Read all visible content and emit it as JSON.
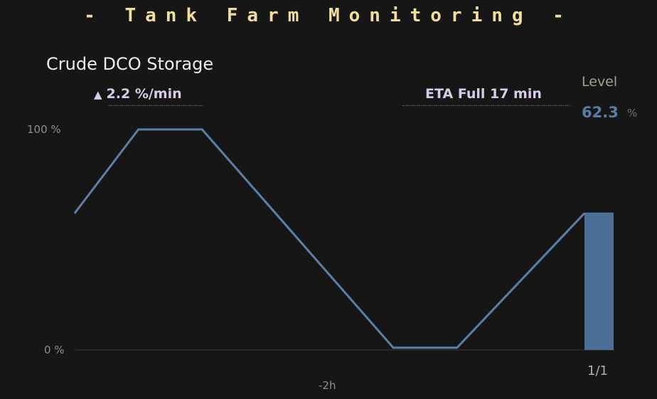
{
  "header": {
    "title": "- Tank Farm Monitoring -"
  },
  "tank": {
    "name": "Crude DCO Storage",
    "rate_arrow": "▲",
    "rate": "2.2 %/min",
    "eta": "ETA Full 17 min",
    "level_label": "Level",
    "level_value": "62.3",
    "level_unit": "%"
  },
  "pager": "1/1",
  "colors": {
    "banner": "#f4dd9c",
    "line": "#5c7fa8",
    "bar": "#4c6f97",
    "level_value": "#5a7da7",
    "rate_text": "#d8cbe8"
  },
  "chart_data": {
    "type": "line",
    "ytick_labels": [
      "100 %",
      "0 %"
    ],
    "xtick_labels": [
      "-2h"
    ],
    "ylim": [
      0,
      100
    ],
    "series": [
      {
        "x": [
          0,
          1,
          2,
          5,
          6,
          8
        ],
        "values": [
          62,
          100,
          100,
          1,
          1,
          62
        ]
      }
    ],
    "current_bar": 62.3,
    "grid": false
  }
}
